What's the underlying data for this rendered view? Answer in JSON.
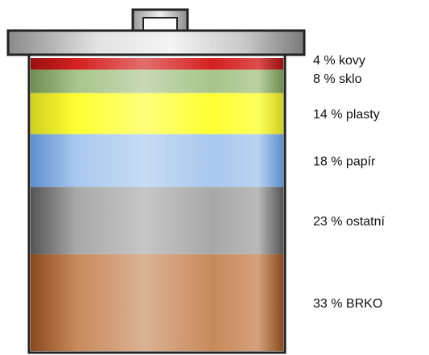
{
  "chart_data": {
    "type": "bar",
    "layout": "stacked-single-bin",
    "unit": "%",
    "title": "",
    "xlabel": "",
    "ylabel": "",
    "categories": [
      "kovy",
      "sklo",
      "plasty",
      "papír",
      "ostatní",
      "BRKO"
    ],
    "values": [
      4,
      8,
      14,
      18,
      23,
      33
    ],
    "colors": [
      "#d42020",
      "#a9c48a",
      "#ffff33",
      "#a8c8ee",
      "#a8a8a8",
      "#c8895a"
    ],
    "edge_colors": [
      "#9a1010",
      "#6f8e50",
      "#cfcf20",
      "#5f8fcf",
      "#555555",
      "#8a4a1e"
    ],
    "label_texts": [
      "4 %  kovy",
      "8 %  sklo",
      "14 %  plasty",
      "18 %  papír",
      "23 %  ostatní",
      "33 %  BRKO"
    ]
  }
}
